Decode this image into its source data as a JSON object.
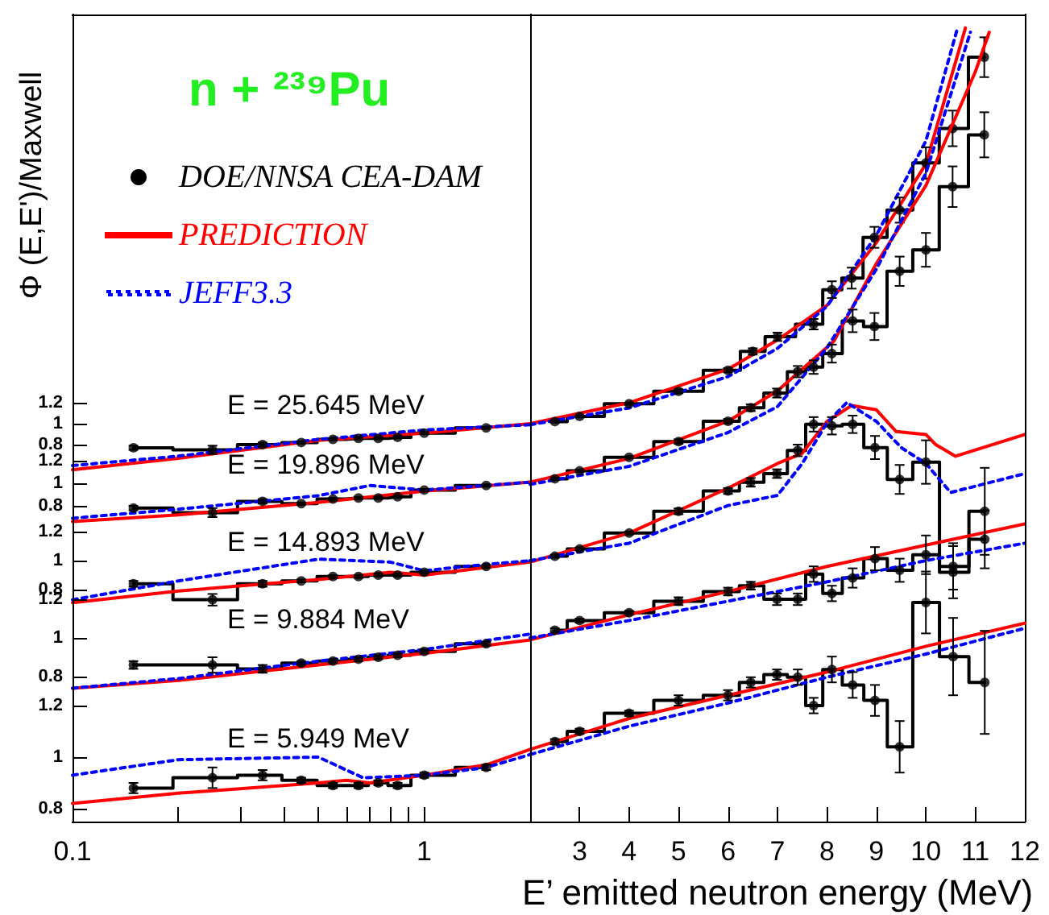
{
  "chart_data": [
    {
      "type": "line",
      "title": "n + ²³⁹Pu",
      "ylabel": "Φ (E,E')/Maxwell",
      "legend": "top left",
      "log": "x",
      "xlim": [
        0.1,
        2
      ],
      "xticks": [
        0.1,
        {
          "value": 0.2,
          "label": null
        },
        {
          "value": 0.3,
          "label": null
        },
        {
          "value": 0.4,
          "label": null
        },
        {
          "value": 0.5,
          "label": null
        },
        {
          "value": 0.6,
          "label": null
        },
        {
          "value": 0.7,
          "label": null
        },
        {
          "value": 0.8,
          "label": null
        },
        {
          "value": 0.9,
          "label": null
        },
        1
      ],
      "ylim": [
        -2.8,
        4.908
      ],
      "yticks": [
        0.8,
        1,
        1.2
      ],
      "tick_labels": "y",
      "annotations": [
        "E = 25.645 MeV"
      ],
      "series": [
        {
          "name": "DOE/NNSA CEA-DAM",
          "type": "step",
          "color": "#000000",
          "marker": "circle",
          "line_style": "solid",
          "x": [
            0.149,
            0.25,
            0.347,
            0.447,
            0.55,
            0.65,
            0.74,
            0.84,
            1,
            1.5
          ],
          "values": [
            0.77,
            0.75,
            0.8,
            0.82,
            0.85,
            0.86,
            0.86,
            0.87,
            0.91,
            0.96
          ],
          "errors": [
            0.02,
            0.04,
            0.02,
            0.01,
            0.01,
            0.01,
            0.01,
            0.01,
            0.01,
            0.01
          ]
        },
        {
          "name": "PREDICTION",
          "type": "line",
          "color": "#ff0000",
          "marker": "none",
          "line_style": "solid",
          "x": [
            0.1,
            0.2,
            0.5,
            1,
            2
          ],
          "values": [
            0.56,
            0.67,
            0.84,
            0.91,
            1.0
          ]
        },
        {
          "name": "JEFF3.3",
          "type": "line",
          "color": "#0000ff",
          "marker": "none",
          "line_style": "dotted",
          "x": [
            0.1,
            0.2,
            0.5,
            1,
            2
          ],
          "values": [
            0.6,
            0.69,
            0.85,
            0.94,
            0.99
          ]
        }
      ]
    },
    {
      "type": "line",
      "xlim": [
        2,
        12
      ],
      "xticks": [
        3,
        4,
        5,
        6,
        7,
        8,
        9,
        10,
        11,
        12
      ],
      "ylim": [
        -2.8,
        4.908
      ],
      "yticks": [
        0.8,
        1,
        1.2
      ],
      "tick_labels": false,
      "series": [
        {
          "type": "step",
          "color": "#000000",
          "marker": "circle",
          "line_style": "solid",
          "x": [
            2.5,
            3,
            4,
            5,
            6,
            6.5,
            7.0,
            7.73,
            8.1,
            8.5,
            8.96,
            9.47,
            10.0,
            10.54,
            11.18
          ],
          "values": [
            1.02,
            1.07,
            1.19,
            1.31,
            1.51,
            1.69,
            1.83,
            1.95,
            2.28,
            2.39,
            2.78,
            3.04,
            3.49,
            3.82,
            4.5
          ],
          "errors": [
            0.01,
            0.01,
            0.01,
            0.02,
            0.02,
            0.03,
            0.04,
            0.05,
            0.08,
            0.1,
            0.1,
            0.12,
            0.15,
            0.17,
            0.19
          ]
        },
        {
          "type": "line",
          "color": "#ff0000",
          "marker": "none",
          "line_style": "solid",
          "x": [
            2,
            4,
            6,
            7,
            8,
            9,
            10,
            10.8
          ],
          "values": [
            1.0,
            1.2,
            1.52,
            1.8,
            2.13,
            2.73,
            3.48,
            4.78
          ]
        },
        {
          "type": "line",
          "color": "#0000ff",
          "marker": "none",
          "line_style": "dotted",
          "x": [
            2,
            4,
            6,
            7,
            8,
            9,
            10,
            10.64
          ],
          "values": [
            0.99,
            1.15,
            1.45,
            1.72,
            2.12,
            2.8,
            3.7,
            4.78
          ]
        }
      ]
    },
    {
      "type": "line",
      "log": "x",
      "xlim": [
        0.1,
        2
      ],
      "xticks": [
        0.1,
        {
          "value": 0.2,
          "label": null
        },
        {
          "value": 0.3,
          "label": null
        },
        {
          "value": 0.4,
          "label": null
        },
        {
          "value": 0.5,
          "label": null
        },
        {
          "value": 0.6,
          "label": null
        },
        {
          "value": 0.7,
          "label": null
        },
        {
          "value": 0.8,
          "label": null
        },
        {
          "value": 0.9,
          "label": null
        },
        1
      ],
      "ylim": [
        -2.0,
        5.157
      ],
      "yticks": [
        0.8,
        1,
        1.2
      ],
      "tick_labels": "y",
      "annotations": [
        "E = 19.896 MeV"
      ],
      "series": [
        {
          "type": "step",
          "color": "#000000",
          "marker": "circle",
          "line_style": "solid",
          "x": [
            0.149,
            0.25,
            0.347,
            0.447,
            0.55,
            0.65,
            0.74,
            0.84,
            1,
            1.5
          ],
          "values": [
            0.78,
            0.74,
            0.84,
            0.82,
            0.86,
            0.87,
            0.87,
            0.88,
            0.94,
            0.98
          ],
          "errors": [
            0.02,
            0.04,
            0.02,
            0.01,
            0.01,
            0.01,
            0.01,
            0.01,
            0.01,
            0.01
          ]
        },
        {
          "type": "line",
          "color": "#ff0000",
          "marker": "none",
          "line_style": "solid",
          "x": [
            0.1,
            0.2,
            0.5,
            1,
            2
          ],
          "values": [
            0.66,
            0.72,
            0.83,
            0.93,
            1.01
          ]
        },
        {
          "type": "line",
          "color": "#0000ff",
          "marker": "none",
          "line_style": "dotted",
          "x": [
            0.1,
            0.2,
            0.5,
            0.7,
            1,
            2
          ],
          "values": [
            0.69,
            0.77,
            0.89,
            0.98,
            0.94,
            1.01
          ]
        }
      ]
    },
    {
      "type": "line",
      "xlim": [
        2,
        12
      ],
      "xticks": [
        3,
        4,
        5,
        6,
        7,
        8,
        9,
        10,
        11,
        12
      ],
      "ylim": [
        -2.0,
        5.157
      ],
      "yticks": [
        0.8,
        1,
        1.2
      ],
      "tick_labels": false,
      "series": [
        {
          "type": "step",
          "color": "#000000",
          "marker": "circle",
          "line_style": "solid",
          "x": [
            2.5,
            3,
            4,
            5,
            6,
            6.46,
            6.99,
            7.41,
            7.73,
            8.1,
            8.52,
            8.96,
            9.47,
            10.0,
            10.54,
            11.18
          ],
          "values": [
            1.04,
            1.11,
            1.23,
            1.37,
            1.55,
            1.67,
            1.8,
            1.99,
            2.03,
            2.15,
            2.44,
            2.39,
            2.88,
            3.07,
            3.63,
            4.09
          ],
          "errors": [
            0.01,
            0.01,
            0.01,
            0.02,
            0.02,
            0.03,
            0.04,
            0.05,
            0.06,
            0.08,
            0.1,
            0.12,
            0.13,
            0.15,
            0.18,
            0.2
          ]
        },
        {
          "type": "line",
          "color": "#ff0000",
          "marker": "none",
          "line_style": "solid",
          "x": [
            2,
            4,
            6,
            7,
            8.14,
            9,
            10,
            11,
            11.28
          ],
          "values": [
            1.01,
            1.22,
            1.55,
            1.82,
            2.26,
            2.95,
            3.64,
            4.65,
            5.0
          ]
        },
        {
          "type": "line",
          "color": "#0000ff",
          "marker": "none",
          "line_style": "dotted",
          "x": [
            2,
            4,
            6,
            7,
            8,
            9,
            10,
            10.9
          ],
          "values": [
            0.99,
            1.15,
            1.45,
            1.68,
            2.2,
            2.9,
            3.75,
            5.0
          ]
        }
      ]
    },
    {
      "type": "line",
      "log": "x",
      "xlim": [
        0.1,
        2
      ],
      "xticks": [
        0.1,
        {
          "value": 0.2,
          "label": null
        },
        {
          "value": 0.3,
          "label": null
        },
        {
          "value": 0.4,
          "label": null
        },
        {
          "value": 0.5,
          "label": null
        },
        {
          "value": 0.6,
          "label": null
        },
        {
          "value": 0.7,
          "label": null
        },
        {
          "value": 0.8,
          "label": null
        },
        {
          "value": 0.9,
          "label": null
        },
        1
      ],
      "ylim": [
        -0.8,
        4.767
      ],
      "yticks": [
        0.8,
        1,
        1.2
      ],
      "tick_labels": "y",
      "annotations": [
        "E = 14.893 MeV"
      ],
      "series": [
        {
          "type": "step",
          "color": "#000000",
          "marker": "circle",
          "line_style": "solid",
          "x": [
            0.149,
            0.25,
            0.347,
            0.447,
            0.55,
            0.65,
            0.74,
            0.84,
            1,
            1.5
          ],
          "values": [
            0.84,
            0.73,
            0.84,
            0.86,
            0.89,
            0.89,
            0.9,
            0.9,
            0.92,
            0.96
          ],
          "errors": [
            0.02,
            0.04,
            0.02,
            0.01,
            0.01,
            0.01,
            0.01,
            0.01,
            0.01,
            0.01
          ]
        },
        {
          "type": "line",
          "color": "#ff0000",
          "marker": "none",
          "line_style": "solid",
          "x": [
            0.1,
            0.2,
            0.5,
            0.8,
            1,
            2
          ],
          "values": [
            0.71,
            0.79,
            0.87,
            0.92,
            0.9,
            0.99
          ]
        },
        {
          "type": "line",
          "color": "#0000ff",
          "marker": "none",
          "line_style": "dotted",
          "x": [
            0.1,
            0.2,
            0.5,
            0.8,
            1,
            1.3,
            2
          ],
          "values": [
            0.73,
            0.86,
            1.01,
            0.99,
            0.93,
            0.96,
            1.0
          ]
        }
      ]
    },
    {
      "type": "line",
      "xlim": [
        2,
        12
      ],
      "xticks": [
        3,
        4,
        5,
        6,
        7,
        8,
        9,
        10,
        11,
        12
      ],
      "ylim": [
        -0.8,
        4.767
      ],
      "yticks": [
        0.8,
        1,
        1.2
      ],
      "tick_labels": false,
      "series": [
        {
          "type": "step",
          "color": "#000000",
          "marker": "circle",
          "line_style": "solid",
          "x": [
            2.5,
            3,
            4,
            5,
            6,
            6.46,
            6.99,
            7.41,
            7.73,
            8.1,
            8.52,
            8.97,
            9.47,
            10.0,
            10.55,
            11.19
          ],
          "values": [
            1.03,
            1.08,
            1.19,
            1.34,
            1.48,
            1.54,
            1.6,
            1.76,
            1.94,
            1.93,
            1.94,
            1.78,
            1.56,
            1.68,
            0.92,
            1.34
          ],
          "errors": [
            0.01,
            0.01,
            0.01,
            0.02,
            0.02,
            0.03,
            0.03,
            0.04,
            0.05,
            0.06,
            0.06,
            0.08,
            0.1,
            0.15,
            0.18,
            0.3
          ]
        },
        {
          "type": "line",
          "color": "#ff0000",
          "marker": "none",
          "line_style": "solid",
          "x": [
            2,
            4,
            6,
            7,
            7.5,
            8,
            8.5,
            9,
            9.4,
            10,
            10.2,
            10.6,
            12
          ],
          "values": [
            0.99,
            1.19,
            1.5,
            1.67,
            1.74,
            1.96,
            2.07,
            2.04,
            1.89,
            1.87,
            1.8,
            1.72,
            1.87
          ]
        },
        {
          "type": "line",
          "color": "#0000ff",
          "marker": "none",
          "line_style": "dotted",
          "x": [
            2,
            4,
            6,
            7,
            7.5,
            8,
            8.4,
            9,
            9.5,
            10,
            10.5,
            12
          ],
          "values": [
            1.0,
            1.12,
            1.38,
            1.45,
            1.67,
            1.95,
            2.09,
            1.96,
            1.78,
            1.67,
            1.47,
            1.6
          ]
        }
      ]
    },
    {
      "type": "line",
      "log": "x",
      "xlim": [
        0.1,
        2
      ],
      "xticks": [
        0.1,
        {
          "value": 0.2,
          "label": null
        },
        {
          "value": 0.3,
          "label": null
        },
        {
          "value": 0.4,
          "label": null
        },
        {
          "value": 0.5,
          "label": null
        },
        {
          "value": 0.6,
          "label": null
        },
        {
          "value": 0.7,
          "label": null
        },
        {
          "value": 0.8,
          "label": null
        },
        {
          "value": 0.9,
          "label": null
        },
        1
      ],
      "ylim": [
        0.05,
        4.225
      ],
      "yticks": [
        0.8,
        1,
        1.2
      ],
      "tick_labels": "y",
      "annotations": [
        "E = 9.884 MeV"
      ],
      "series": [
        {
          "type": "step",
          "color": "#000000",
          "marker": "circle",
          "line_style": "solid",
          "x": [
            0.149,
            0.25,
            0.347,
            0.447,
            0.55,
            0.65,
            0.74,
            0.84,
            1,
            1.5
          ],
          "values": [
            0.86,
            0.86,
            0.84,
            0.87,
            0.88,
            0.89,
            0.9,
            0.91,
            0.93,
            0.97
          ],
          "errors": [
            0.02,
            0.04,
            0.02,
            0.01,
            0.01,
            0.01,
            0.01,
            0.01,
            0.01,
            0.01
          ]
        },
        {
          "type": "line",
          "color": "#ff0000",
          "marker": "none",
          "line_style": "solid",
          "x": [
            0.1,
            0.2,
            0.5,
            1,
            2
          ],
          "values": [
            0.74,
            0.78,
            0.86,
            0.92,
            0.99
          ]
        },
        {
          "type": "line",
          "color": "#0000ff",
          "marker": "none",
          "line_style": "dotted",
          "x": [
            0.1,
            0.2,
            0.5,
            1,
            2
          ],
          "values": [
            0.74,
            0.79,
            0.88,
            0.94,
            1.02
          ]
        }
      ]
    },
    {
      "type": "line",
      "xlim": [
        2,
        12
      ],
      "xticks": [
        3,
        4,
        5,
        6,
        7,
        8,
        9,
        10,
        11,
        12
      ],
      "ylim": [
        0.05,
        4.225
      ],
      "yticks": [
        0.8,
        1,
        1.2
      ],
      "tick_labels": false,
      "series": [
        {
          "type": "step",
          "color": "#000000",
          "marker": "circle",
          "line_style": "solid",
          "x": [
            2.5,
            3,
            4,
            5,
            6,
            6.46,
            6.99,
            7.41,
            7.73,
            8.1,
            8.52,
            8.97,
            9.47,
            10.0,
            10.55,
            11.19
          ],
          "values": [
            1.04,
            1.09,
            1.13,
            1.19,
            1.24,
            1.27,
            1.2,
            1.2,
            1.33,
            1.23,
            1.31,
            1.41,
            1.35,
            1.43,
            1.37,
            1.51
          ],
          "errors": [
            0.01,
            0.01,
            0.01,
            0.02,
            0.02,
            0.02,
            0.03,
            0.03,
            0.04,
            0.04,
            0.05,
            0.06,
            0.06,
            0.1,
            0.12,
            0.15
          ]
        },
        {
          "type": "line",
          "color": "#ff0000",
          "marker": "none",
          "line_style": "solid",
          "x": [
            2,
            4,
            6,
            8,
            10,
            12
          ],
          "values": [
            0.99,
            1.12,
            1.24,
            1.37,
            1.48,
            1.59
          ]
        },
        {
          "type": "line",
          "color": "#0000ff",
          "marker": "none",
          "line_style": "dotted",
          "x": [
            2,
            4,
            6,
            8,
            10,
            12
          ],
          "values": [
            1.0,
            1.09,
            1.19,
            1.29,
            1.4,
            1.49
          ]
        }
      ]
    },
    {
      "type": "line",
      "log": "x",
      "xlim": [
        0.1,
        2
      ],
      "xticks": [
        0.1,
        {
          "value": 0.2,
          "label": null
        },
        {
          "value": 0.3,
          "label": null
        },
        {
          "value": 0.4,
          "label": null
        },
        {
          "value": 0.5,
          "label": null
        },
        {
          "value": 0.6,
          "label": null
        },
        {
          "value": 0.7,
          "label": null
        },
        {
          "value": 0.8,
          "label": null
        },
        {
          "value": 0.9,
          "label": null
        },
        1
      ],
      "ylim": [
        0.75,
        3.881
      ],
      "yticks": [
        0.8,
        1,
        1.2
      ],
      "annotations": [
        "E = 5.949 MeV"
      ],
      "series": [
        {
          "type": "step",
          "color": "#000000",
          "marker": "circle",
          "line_style": "solid",
          "x": [
            0.149,
            0.25,
            0.347,
            0.447,
            0.55,
            0.65,
            0.74,
            0.84,
            1,
            1.5
          ],
          "values": [
            0.88,
            0.92,
            0.93,
            0.91,
            0.89,
            0.89,
            0.9,
            0.89,
            0.93,
            0.96
          ],
          "errors": [
            0.02,
            0.04,
            0.02,
            0.01,
            0.01,
            0.01,
            0.01,
            0.01,
            0.01,
            0.01
          ]
        },
        {
          "type": "line",
          "color": "#ff0000",
          "marker": "none",
          "line_style": "solid",
          "x": [
            0.1,
            0.2,
            0.5,
            0.6,
            0.7,
            1,
            1.5,
            2
          ],
          "values": [
            0.82,
            0.86,
            0.9,
            0.91,
            0.9,
            0.93,
            0.97,
            1.03
          ]
        },
        {
          "type": "line",
          "color": "#0000ff",
          "marker": "none",
          "line_style": "dotted",
          "x": [
            0.1,
            0.2,
            0.5,
            0.67,
            1,
            1.5,
            2
          ],
          "values": [
            0.93,
            0.99,
            1.0,
            0.92,
            0.93,
            0.96,
            1.01
          ]
        }
      ]
    },
    {
      "type": "line",
      "xlabel": "E’ emitted neutron energy (MeV)",
      "xlim": [
        2,
        12
      ],
      "xticks": [
        3,
        4,
        5,
        6,
        7,
        8,
        9,
        10,
        11,
        12
      ],
      "ylim": [
        0.75,
        3.881
      ],
      "yticks": [
        0.8,
        1,
        1.2
      ],
      "tick_labels": "x",
      "series": [
        {
          "type": "step",
          "color": "#000000",
          "marker": "circle",
          "line_style": "solid",
          "x": [
            2.5,
            3,
            4,
            5,
            6,
            6.46,
            6.99,
            7.41,
            7.73,
            8.1,
            8.52,
            8.97,
            9.47,
            10.0,
            10.55,
            11.19
          ],
          "values": [
            1.06,
            1.1,
            1.17,
            1.22,
            1.24,
            1.29,
            1.32,
            1.31,
            1.2,
            1.34,
            1.28,
            1.22,
            1.04,
            1.6,
            1.39,
            1.29
          ],
          "errors": [
            0.01,
            0.01,
            0.01,
            0.02,
            0.02,
            0.02,
            0.02,
            0.03,
            0.03,
            0.05,
            0.05,
            0.06,
            0.1,
            0.12,
            0.15,
            0.2
          ]
        },
        {
          "type": "line",
          "color": "#ff0000",
          "marker": "none",
          "line_style": "solid",
          "x": [
            2,
            4,
            6,
            8,
            10,
            12
          ],
          "values": [
            1.03,
            1.15,
            1.24,
            1.33,
            1.43,
            1.52
          ]
        },
        {
          "type": "line",
          "color": "#0000ff",
          "marker": "none",
          "line_style": "dotted",
          "x": [
            2,
            4,
            6,
            8,
            10,
            12
          ],
          "values": [
            1.01,
            1.12,
            1.21,
            1.31,
            1.4,
            1.5
          ]
        }
      ]
    }
  ]
}
